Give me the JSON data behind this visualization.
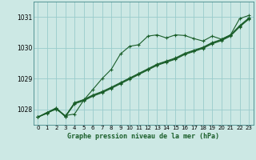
{
  "bg_color": "#cce8e4",
  "grid_color": "#99cccc",
  "line_color": "#1a5e2a",
  "title": "Graphe pression niveau de la mer (hPa)",
  "ylabel_vals": [
    1028,
    1029,
    1030,
    1031
  ],
  "xlim": [
    -0.5,
    23.5
  ],
  "ylim": [
    1027.5,
    1031.5
  ],
  "series1": [
    1027.75,
    1027.9,
    1028.0,
    1027.8,
    1027.85,
    1028.3,
    1028.65,
    1029.0,
    1029.3,
    1029.8,
    1030.05,
    1030.1,
    1030.38,
    1030.42,
    1030.32,
    1030.42,
    1030.4,
    1030.3,
    1030.22,
    1030.38,
    1030.28,
    1030.42,
    1030.95,
    1031.05
  ],
  "series2": [
    1027.75,
    1027.9,
    1028.05,
    1027.78,
    1028.22,
    1028.32,
    1028.47,
    1028.58,
    1028.72,
    1028.87,
    1029.02,
    1029.17,
    1029.32,
    1029.47,
    1029.57,
    1029.67,
    1029.82,
    1029.92,
    1030.02,
    1030.17,
    1030.27,
    1030.42,
    1030.72,
    1030.97
  ],
  "series3": [
    1027.75,
    1027.87,
    1028.03,
    1027.76,
    1028.18,
    1028.28,
    1028.43,
    1028.54,
    1028.68,
    1028.83,
    1028.98,
    1029.13,
    1029.28,
    1029.43,
    1029.53,
    1029.63,
    1029.78,
    1029.88,
    1029.98,
    1030.13,
    1030.23,
    1030.38,
    1030.68,
    1030.93
  ],
  "series4": [
    1027.75,
    1027.88,
    1028.04,
    1027.77,
    1028.2,
    1028.3,
    1028.45,
    1028.56,
    1028.7,
    1028.85,
    1029.0,
    1029.15,
    1029.3,
    1029.45,
    1029.55,
    1029.65,
    1029.8,
    1029.9,
    1030.0,
    1030.15,
    1030.25,
    1030.4,
    1030.7,
    1030.95
  ]
}
